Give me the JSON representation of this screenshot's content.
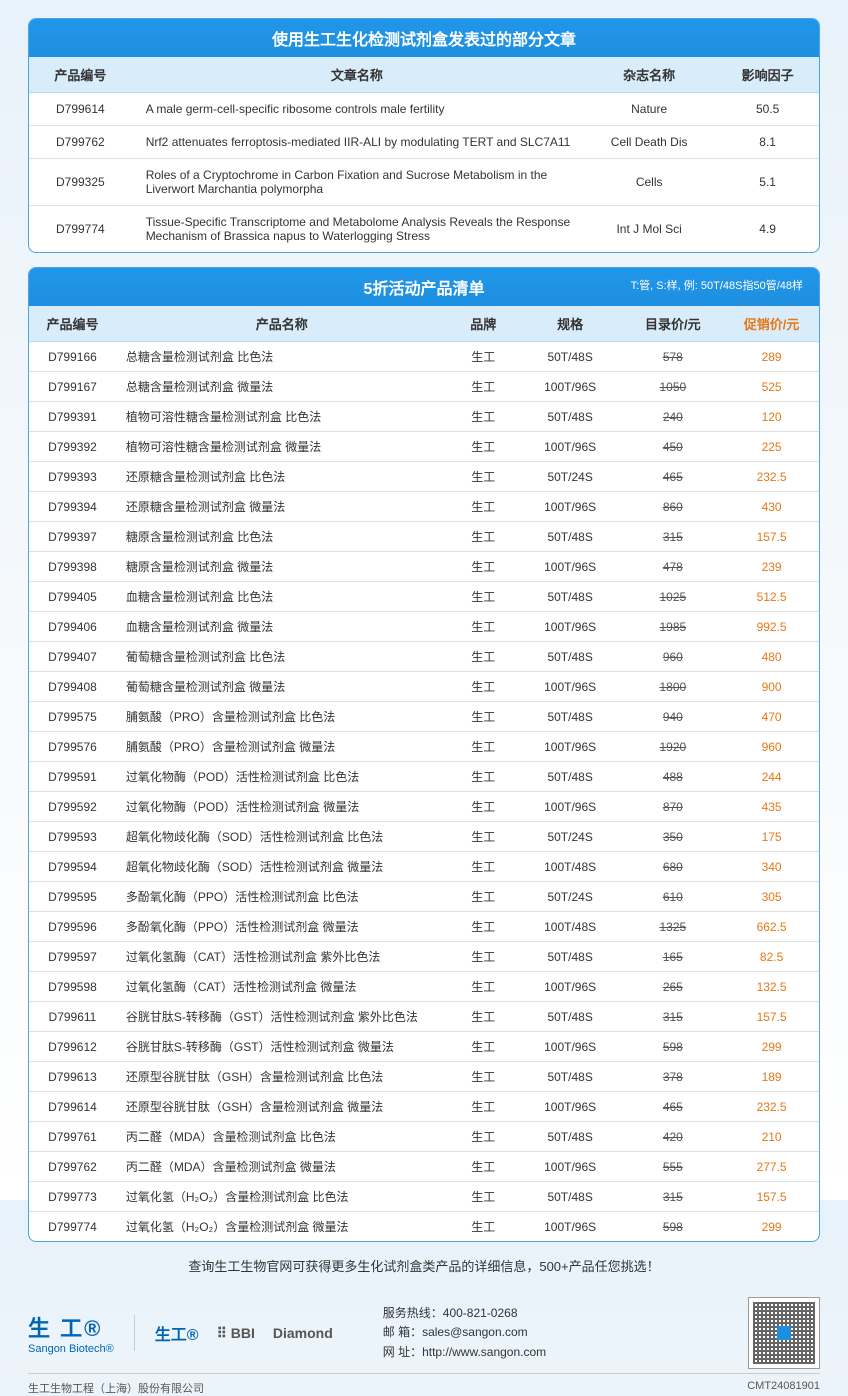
{
  "articles_table": {
    "title": "使用生工生化检测试剂盒发表过的部分文章",
    "headers": [
      "产品编号",
      "文章名称",
      "杂志名称",
      "影响因子"
    ],
    "rows": [
      [
        "D799614",
        "A male germ-cell-specific ribosome controls male fertility",
        "Nature",
        "50.5"
      ],
      [
        "D799762",
        "Nrf2 attenuates ferroptosis-mediated IIR-ALI by modulating TERT and SLC7A11",
        "Cell Death Dis",
        "8.1"
      ],
      [
        "D799325",
        "Roles of a Cryptochrome in Carbon Fixation and Sucrose Metabolism in the Liverwort Marchantia polymorpha",
        "Cells",
        "5.1"
      ],
      [
        "D799774",
        "Tissue-Specific Transcriptome and Metabolome Analysis Reveals the Response Mechanism of Brassica napus to Waterlogging Stress",
        "Int J Mol Sci",
        "4.9"
      ]
    ]
  },
  "products_table": {
    "title": "5折活动产品清单",
    "note": "T:管, S:样, 例: 50T/48S指50管/48样",
    "headers": [
      "产品编号",
      "产品名称",
      "品牌",
      "规格",
      "目录价/元",
      "促销价/元"
    ],
    "rows": [
      [
        "D799166",
        "总糖含量检测试剂盒 比色法",
        "生工",
        "50T/48S",
        "578",
        "289"
      ],
      [
        "D799167",
        "总糖含量检测试剂盒 微量法",
        "生工",
        "100T/96S",
        "1050",
        "525"
      ],
      [
        "D799391",
        "植物可溶性糖含量检测试剂盒 比色法",
        "生工",
        "50T/48S",
        "240",
        "120"
      ],
      [
        "D799392",
        "植物可溶性糖含量检测试剂盒 微量法",
        "生工",
        "100T/96S",
        "450",
        "225"
      ],
      [
        "D799393",
        "还原糖含量检测试剂盒 比色法",
        "生工",
        "50T/24S",
        "465",
        "232.5"
      ],
      [
        "D799394",
        "还原糖含量检测试剂盒 微量法",
        "生工",
        "100T/96S",
        "860",
        "430"
      ],
      [
        "D799397",
        "糖原含量检测试剂盒 比色法",
        "生工",
        "50T/48S",
        "315",
        "157.5"
      ],
      [
        "D799398",
        "糖原含量检测试剂盒 微量法",
        "生工",
        "100T/96S",
        "478",
        "239"
      ],
      [
        "D799405",
        "血糖含量检测试剂盒 比色法",
        "生工",
        "50T/48S",
        "1025",
        "512.5"
      ],
      [
        "D799406",
        "血糖含量检测试剂盒 微量法",
        "生工",
        "100T/96S",
        "1985",
        "992.5"
      ],
      [
        "D799407",
        "葡萄糖含量检测试剂盒 比色法",
        "生工",
        "50T/48S",
        "960",
        "480"
      ],
      [
        "D799408",
        "葡萄糖含量检测试剂盒 微量法",
        "生工",
        "100T/96S",
        "1800",
        "900"
      ],
      [
        "D799575",
        "脯氨酸（PRO）含量检测试剂盒 比色法",
        "生工",
        "50T/48S",
        "940",
        "470"
      ],
      [
        "D799576",
        "脯氨酸（PRO）含量检测试剂盒 微量法",
        "生工",
        "100T/96S",
        "1920",
        "960"
      ],
      [
        "D799591",
        "过氧化物酶（POD）活性检测试剂盒 比色法",
        "生工",
        "50T/48S",
        "488",
        "244"
      ],
      [
        "D799592",
        "过氧化物酶（POD）活性检测试剂盒 微量法",
        "生工",
        "100T/96S",
        "870",
        "435"
      ],
      [
        "D799593",
        "超氧化物歧化酶（SOD）活性检测试剂盒 比色法",
        "生工",
        "50T/24S",
        "350",
        "175"
      ],
      [
        "D799594",
        "超氧化物歧化酶（SOD）活性检测试剂盒 微量法",
        "生工",
        "100T/48S",
        "680",
        "340"
      ],
      [
        "D799595",
        "多酚氧化酶（PPO）活性检测试剂盒 比色法",
        "生工",
        "50T/24S",
        "610",
        "305"
      ],
      [
        "D799596",
        "多酚氧化酶（PPO）活性检测试剂盒 微量法",
        "生工",
        "100T/48S",
        "1325",
        "662.5"
      ],
      [
        "D799597",
        "过氧化氢酶（CAT）活性检测试剂盒 紫外比色法",
        "生工",
        "50T/48S",
        "165",
        "82.5"
      ],
      [
        "D799598",
        "过氧化氢酶（CAT）活性检测试剂盒 微量法",
        "生工",
        "100T/96S",
        "265",
        "132.5"
      ],
      [
        "D799611",
        "谷胱甘肽S-转移酶（GST）活性检测试剂盒 紫外比色法",
        "生工",
        "50T/48S",
        "315",
        "157.5"
      ],
      [
        "D799612",
        "谷胱甘肽S-转移酶（GST）活性检测试剂盒 微量法",
        "生工",
        "100T/96S",
        "598",
        "299"
      ],
      [
        "D799613",
        "还原型谷胱甘肽（GSH）含量检测试剂盒 比色法",
        "生工",
        "50T/48S",
        "378",
        "189"
      ],
      [
        "D799614",
        "还原型谷胱甘肽（GSH）含量检测试剂盒 微量法",
        "生工",
        "100T/96S",
        "465",
        "232.5"
      ],
      [
        "D799761",
        "丙二醛（MDA）含量检测试剂盒 比色法",
        "生工",
        "50T/48S",
        "420",
        "210"
      ],
      [
        "D799762",
        "丙二醛（MDA）含量检测试剂盒 微量法",
        "生工",
        "100T/96S",
        "555",
        "277.5"
      ],
      [
        "D799773",
        "过氧化氢（H₂O₂）含量检测试剂盒 比色法",
        "生工",
        "50T/48S",
        "315",
        "157.5"
      ],
      [
        "D799774",
        "过氧化氢（H₂O₂）含量检测试剂盒 微量法",
        "生工",
        "100T/96S",
        "598",
        "299"
      ]
    ]
  },
  "bottom_note": "查询生工生物官网可获得更多生化试剂盒类产品的详细信息，500+产品任您挑选！",
  "footer": {
    "logo_cn": "生 工®",
    "logo_en": "Sangon Biotech®",
    "brand2": "生工®",
    "brand3": "BBI",
    "brand4": "Diamond",
    "hotline_label": "服务热线：",
    "hotline": "400-821-0268",
    "email_label": "邮    箱：",
    "email": "sales@sangon.com",
    "web_label": "网    址：",
    "web": "http://www.sangon.com",
    "company": "生工生物工程（上海）股份有限公司",
    "code": "CMT24081901"
  }
}
